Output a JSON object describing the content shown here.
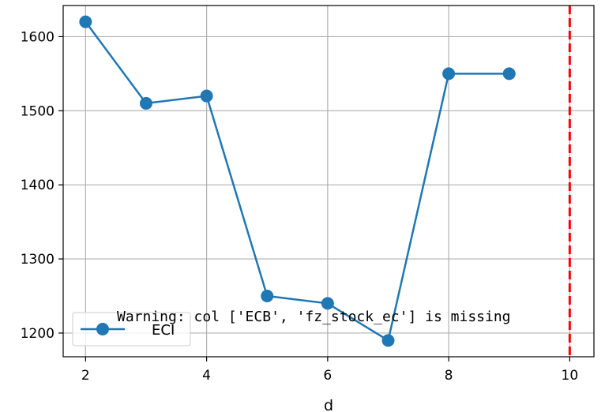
{
  "chart_data": {
    "type": "line",
    "xlabel": "d",
    "ylabel": "",
    "title": "",
    "xlim": [
      1.63,
      10.4
    ],
    "ylim": [
      1168,
      1642
    ],
    "xticks": [
      2,
      4,
      6,
      8,
      10
    ],
    "yticks": [
      1200,
      1300,
      1400,
      1500,
      1600
    ],
    "grid": true,
    "legend_position": "lower-left",
    "series": [
      {
        "name": "ECI",
        "color": "#1f77b4",
        "marker": "circle",
        "x": [
          2,
          3,
          4,
          5,
          6,
          7,
          8,
          9
        ],
        "y": [
          1620,
          1510,
          1520,
          1250,
          1240,
          1190,
          1550,
          1550
        ]
      }
    ],
    "vline": {
      "x": 10,
      "color": "#ff0000",
      "style": "dashed"
    },
    "annotation": {
      "text": "Warning: col ['ECB', 'fz_stock_ec'] is missing"
    }
  }
}
